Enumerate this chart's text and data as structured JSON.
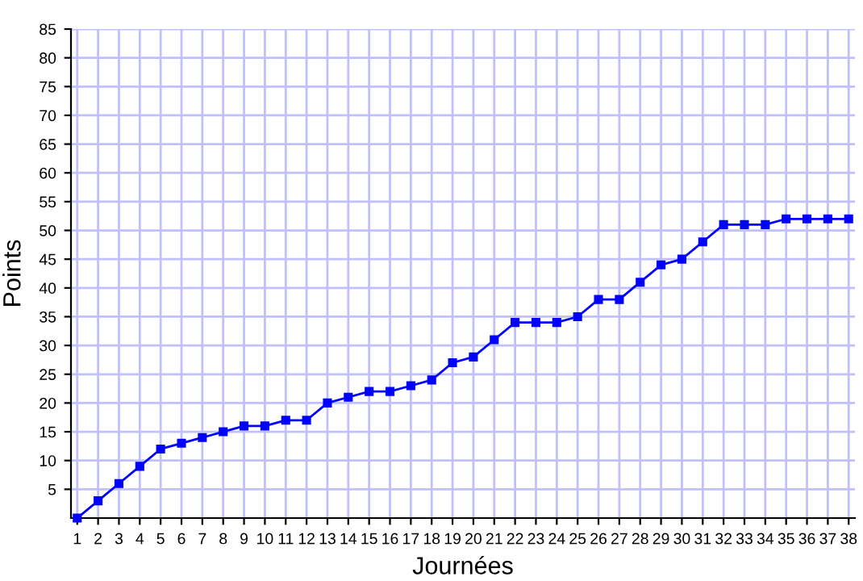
{
  "chart_data": {
    "type": "line",
    "xlabel": "Journées",
    "ylabel": "Points",
    "x": [
      1,
      2,
      3,
      4,
      5,
      6,
      7,
      8,
      9,
      10,
      11,
      12,
      13,
      14,
      15,
      16,
      17,
      18,
      19,
      20,
      21,
      22,
      23,
      24,
      25,
      26,
      27,
      28,
      29,
      30,
      31,
      32,
      33,
      34,
      35,
      36,
      37,
      38
    ],
    "series": [
      {
        "color": "#0000ff",
        "values": [
          0,
          3,
          6,
          9,
          12,
          13,
          14,
          15,
          16,
          16,
          17,
          17,
          20,
          21,
          22,
          22,
          23,
          24,
          27,
          28,
          31,
          34,
          34,
          34,
          35,
          38,
          38,
          41,
          44,
          45,
          48,
          51,
          51,
          51,
          52,
          52,
          52,
          52
        ]
      }
    ],
    "xlim": [
      0.7,
      38.3
    ],
    "ylim": [
      0,
      85
    ],
    "xticks": [
      1,
      2,
      3,
      4,
      5,
      6,
      7,
      8,
      9,
      10,
      11,
      12,
      13,
      14,
      15,
      16,
      17,
      18,
      19,
      20,
      21,
      22,
      23,
      24,
      25,
      26,
      27,
      28,
      29,
      30,
      31,
      32,
      33,
      34,
      35,
      36,
      37,
      38
    ],
    "yticks": [
      5,
      10,
      15,
      20,
      25,
      30,
      35,
      40,
      45,
      50,
      55,
      60,
      65,
      70,
      75,
      80,
      85
    ],
    "grid": true,
    "marker": "square",
    "line_style": "solid",
    "legend": false
  }
}
